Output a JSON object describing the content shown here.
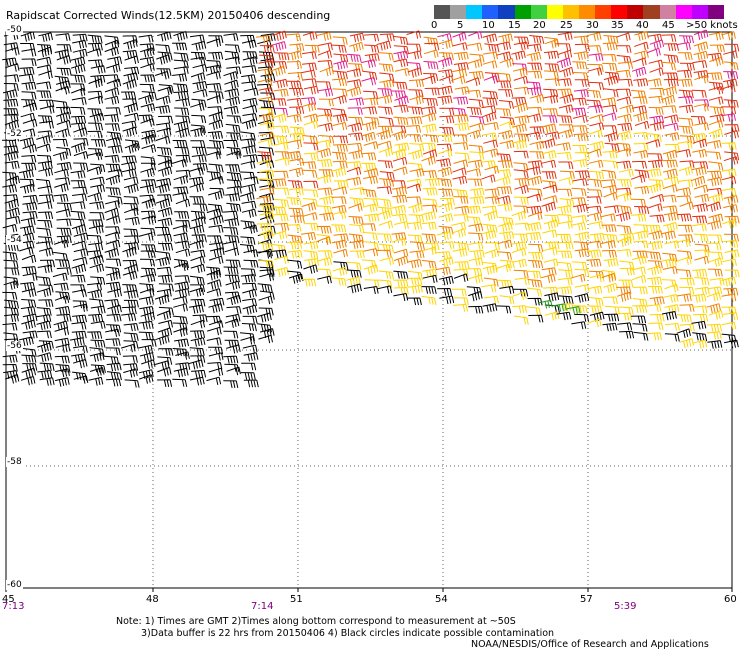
{
  "title": "Rapidscat Corrected Winds(12.5KM) 20150406 descending",
  "legend": {
    "labels": [
      "0",
      "5",
      "10",
      "15",
      "20",
      "25",
      "30",
      "35",
      "40",
      "45",
      ">50 knots"
    ],
    "colors": [
      "#555555",
      "#a0a0a0",
      "#00c8ff",
      "#2060ff",
      "#1040c0",
      "#00a000",
      "#40d040",
      "#ffff00",
      "#ffc000",
      "#ff8c00",
      "#ff4000",
      "#ff0000",
      "#c00000",
      "#a04020",
      "#d080a0",
      "#ff00ff",
      "#c000ff",
      "#800080"
    ]
  },
  "map": {
    "lon_min": 45,
    "lon_max": 60,
    "lat_min": -60,
    "lat_max": -50,
    "x_ticks": [
      "45",
      "48",
      "51",
      "54",
      "57",
      "60"
    ],
    "y_ticks": [
      "-50",
      "-52",
      "-54",
      "-56",
      "-58",
      "-60"
    ],
    "times": [
      "7:13",
      "7:14",
      "5:39"
    ]
  },
  "notes": {
    "line1": "Note: 1) Times are GMT 2)Times along bottom correspond to measurement at ~50S",
    "line2": "3)Data buffer is 22 hrs from 20150406 4) Black circles indicate possible contamination",
    "credit": "NOAA/NESDIS/Office of Research and Applications"
  },
  "wind_colors": {
    "old_pass": "#000000",
    "yellow": "#ffd400",
    "orange": "#f08000",
    "red": "#e03010",
    "pink": "#e0208c",
    "green": "#20a020"
  }
}
